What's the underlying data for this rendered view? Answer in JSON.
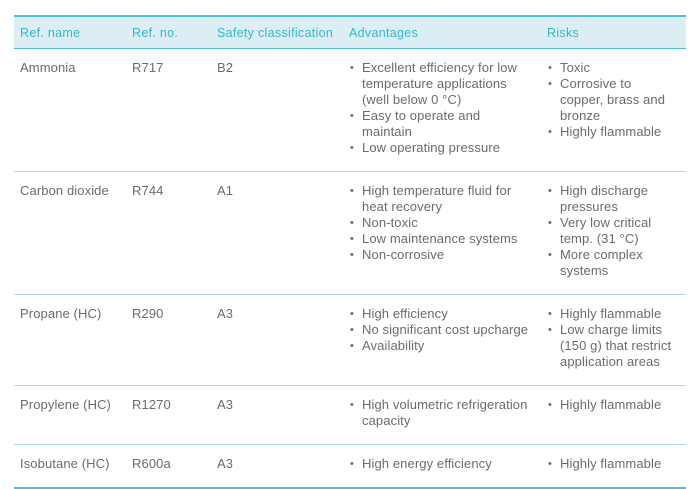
{
  "colors": {
    "accent": "#35b6ce",
    "rule_strong": "#4cc0d6",
    "rule_light": "#a8dae7",
    "header_bg": "#dceef3",
    "body_text": "#6b6b6b",
    "page_bg": "#ffffff"
  },
  "table": {
    "columns": [
      {
        "key": "name",
        "label": "Ref. name"
      },
      {
        "key": "no",
        "label": "Ref. no."
      },
      {
        "key": "safety",
        "label": "Safety classification"
      },
      {
        "key": "advantages",
        "label": "Advantages"
      },
      {
        "key": "risks",
        "label": "Risks"
      }
    ],
    "rows": [
      {
        "name": "Ammonia",
        "no": "R717",
        "safety": "B2",
        "advantages": [
          "Excellent efficiency for low temperature applications (well below 0 °C)",
          "Easy to operate and maintain",
          "Low operating pressure"
        ],
        "risks": [
          "Toxic",
          "Corrosive to copper, brass and bronze",
          "Highly flammable"
        ]
      },
      {
        "name": "Carbon dioxide",
        "no": "R744",
        "safety": "A1",
        "advantages": [
          "High temperature fluid for heat recovery",
          "Non-toxic",
          "Low maintenance systems",
          "Non-corrosive"
        ],
        "risks": [
          "High discharge pressures",
          "Very low critical temp. (31 °C)",
          "More complex systems"
        ]
      },
      {
        "name": "Propane (HC)",
        "no": "R290",
        "safety": "A3",
        "advantages": [
          "High efficiency",
          "No significant cost upcharge",
          "Availability"
        ],
        "risks": [
          "Highly flammable",
          "Low charge limits (150 g) that restrict application areas"
        ]
      },
      {
        "name": "Propylene (HC)",
        "no": "R1270",
        "safety": "A3",
        "advantages": [
          "High volumetric refrigeration capacity"
        ],
        "risks": [
          "Highly flammable"
        ]
      },
      {
        "name": "Isobutane (HC)",
        "no": "R600a",
        "safety": "A3",
        "advantages": [
          "High energy efficiency"
        ],
        "risks": [
          "Highly flammable"
        ]
      }
    ]
  }
}
